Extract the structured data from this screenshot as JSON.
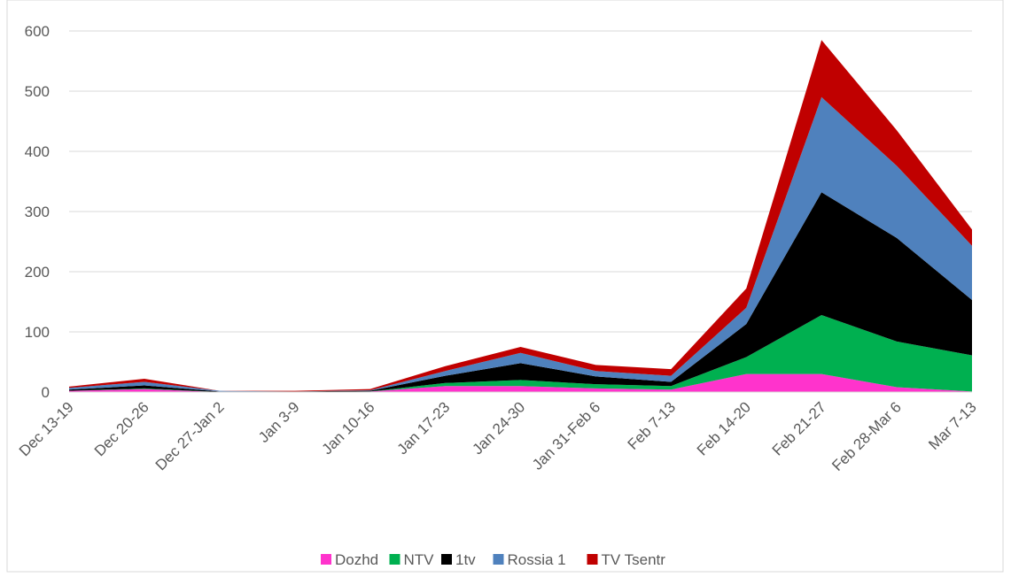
{
  "chart_data": {
    "type": "stacked_area",
    "categories": [
      "Dec 13-19",
      "Dec 20-26",
      "Dec 27-Jan 2",
      "Jan 3-9",
      "Jan 10-16",
      "Jan 17-23",
      "Jan 24-30",
      "Jan 31-Feb 6",
      "Feb 7-13",
      "Feb 14-20",
      "Feb 21-27",
      "Feb 28-Mar 6",
      "Mar 7-13"
    ],
    "series": [
      {
        "name": "Dozhd",
        "color": "#ff33cc",
        "values": [
          2,
          5,
          0,
          0,
          1,
          10,
          10,
          6,
          4,
          30,
          30,
          8,
          1
        ]
      },
      {
        "name": "NTV",
        "color": "#00b050",
        "values": [
          0,
          1,
          0,
          0,
          0,
          5,
          10,
          7,
          6,
          28,
          98,
          76,
          60
        ]
      },
      {
        "name": "1tv",
        "color": "#000000",
        "values": [
          2,
          5,
          1,
          1,
          1,
          12,
          28,
          13,
          7,
          55,
          204,
          172,
          92
        ]
      },
      {
        "name": "Rossia 1",
        "color": "#4f81bd",
        "values": [
          3,
          6,
          1,
          0,
          1,
          8,
          17,
          9,
          10,
          27,
          158,
          120,
          90
        ]
      },
      {
        "name": "TV Tsentr",
        "color": "#c00000",
        "values": [
          2,
          5,
          0,
          1,
          2,
          8,
          10,
          10,
          11,
          32,
          95,
          59,
          27
        ]
      }
    ],
    "ylim": [
      0,
      600
    ],
    "yticks": [
      0,
      100,
      200,
      300,
      400,
      500,
      600
    ],
    "grid": true,
    "legend": "bottom"
  }
}
